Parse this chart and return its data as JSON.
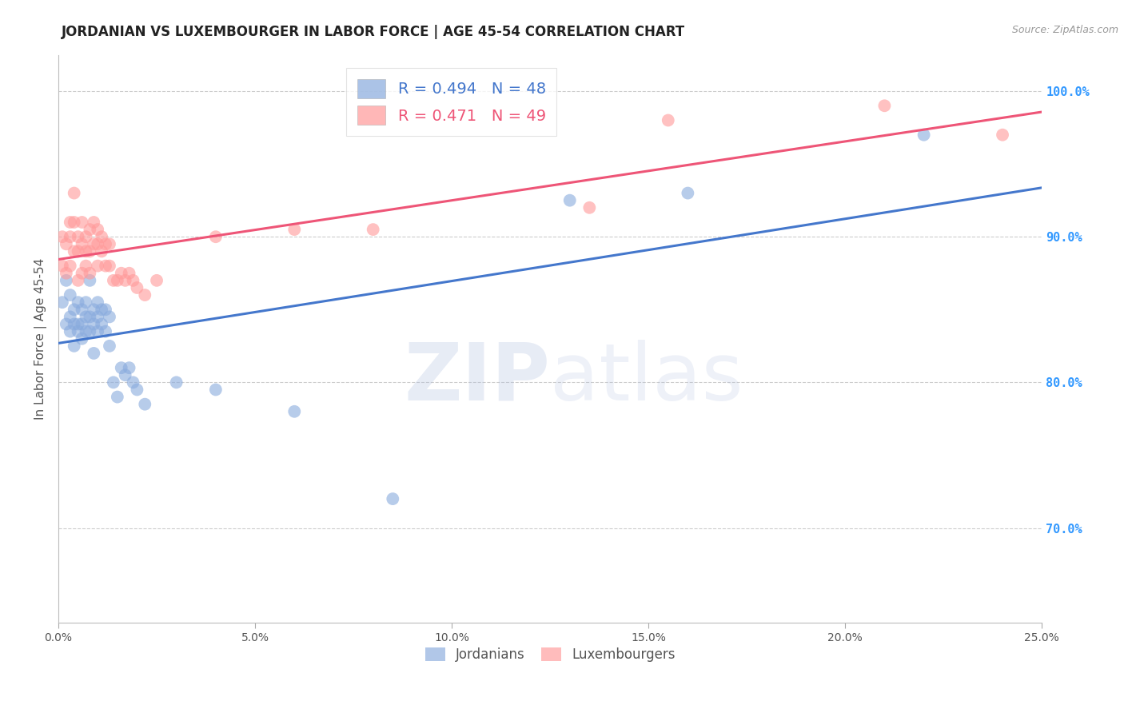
{
  "title": "JORDANIAN VS LUXEMBOURGER IN LABOR FORCE | AGE 45-54 CORRELATION CHART",
  "source": "Source: ZipAtlas.com",
  "ylabel": "In Labor Force | Age 45-54",
  "watermark_zip": "ZIP",
  "watermark_atlas": "atlas",
  "xlim": [
    0.0,
    0.25
  ],
  "ylim": [
    0.635,
    1.025
  ],
  "xticks": [
    0.0,
    0.05,
    0.1,
    0.15,
    0.2,
    0.25
  ],
  "xtick_labels": [
    "0.0%",
    "5.0%",
    "10.0%",
    "15.0%",
    "20.0%",
    "25.0%"
  ],
  "yticks_right": [
    0.7,
    0.8,
    0.9,
    1.0
  ],
  "ytick_labels_right": [
    "70.0%",
    "80.0%",
    "90.0%",
    "100.0%"
  ],
  "blue_color": "#88AADD",
  "pink_color": "#FF9999",
  "blue_line_color": "#4477CC",
  "pink_line_color": "#EE5577",
  "legend_blue_R": "R = 0.494",
  "legend_blue_N": "N = 48",
  "legend_pink_R": "R = 0.471",
  "legend_pink_N": "N = 49",
  "jordanian_x": [
    0.001,
    0.002,
    0.002,
    0.003,
    0.003,
    0.003,
    0.004,
    0.004,
    0.004,
    0.005,
    0.005,
    0.005,
    0.006,
    0.006,
    0.006,
    0.007,
    0.007,
    0.007,
    0.008,
    0.008,
    0.008,
    0.009,
    0.009,
    0.009,
    0.01,
    0.01,
    0.01,
    0.011,
    0.011,
    0.012,
    0.012,
    0.013,
    0.013,
    0.014,
    0.015,
    0.016,
    0.017,
    0.018,
    0.019,
    0.02,
    0.022,
    0.03,
    0.04,
    0.06,
    0.085,
    0.13,
    0.16,
    0.22
  ],
  "jordanian_y": [
    0.855,
    0.87,
    0.84,
    0.86,
    0.845,
    0.835,
    0.85,
    0.84,
    0.825,
    0.855,
    0.84,
    0.835,
    0.85,
    0.84,
    0.83,
    0.855,
    0.845,
    0.835,
    0.845,
    0.835,
    0.87,
    0.85,
    0.84,
    0.82,
    0.855,
    0.845,
    0.835,
    0.85,
    0.84,
    0.85,
    0.835,
    0.845,
    0.825,
    0.8,
    0.79,
    0.81,
    0.805,
    0.81,
    0.8,
    0.795,
    0.785,
    0.8,
    0.795,
    0.78,
    0.72,
    0.925,
    0.93,
    0.97
  ],
  "luxembourger_x": [
    0.001,
    0.001,
    0.002,
    0.002,
    0.003,
    0.003,
    0.003,
    0.004,
    0.004,
    0.004,
    0.005,
    0.005,
    0.005,
    0.006,
    0.006,
    0.006,
    0.007,
    0.007,
    0.007,
    0.008,
    0.008,
    0.008,
    0.009,
    0.009,
    0.01,
    0.01,
    0.01,
    0.011,
    0.011,
    0.012,
    0.012,
    0.013,
    0.013,
    0.014,
    0.015,
    0.016,
    0.017,
    0.018,
    0.019,
    0.02,
    0.022,
    0.025,
    0.04,
    0.06,
    0.08,
    0.135,
    0.155,
    0.21,
    0.24
  ],
  "luxembourger_y": [
    0.9,
    0.88,
    0.895,
    0.875,
    0.91,
    0.9,
    0.88,
    0.93,
    0.91,
    0.89,
    0.9,
    0.89,
    0.87,
    0.91,
    0.895,
    0.875,
    0.9,
    0.89,
    0.88,
    0.905,
    0.89,
    0.875,
    0.91,
    0.895,
    0.905,
    0.895,
    0.88,
    0.9,
    0.89,
    0.895,
    0.88,
    0.895,
    0.88,
    0.87,
    0.87,
    0.875,
    0.87,
    0.875,
    0.87,
    0.865,
    0.86,
    0.87,
    0.9,
    0.905,
    0.905,
    0.92,
    0.98,
    0.99,
    0.97
  ],
  "background_color": "#FFFFFF",
  "grid_color": "#CCCCCC",
  "title_color": "#222222",
  "axis_label_color": "#555555",
  "right_tick_color": "#3399FF",
  "title_fontsize": 12,
  "label_fontsize": 11
}
